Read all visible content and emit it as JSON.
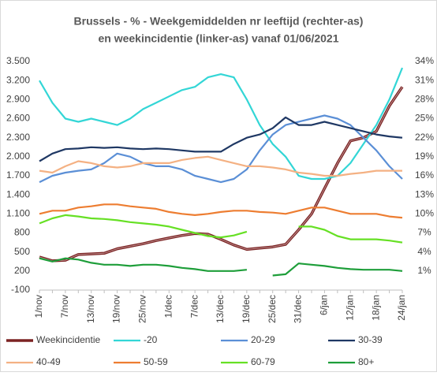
{
  "chart_data": {
    "type": "line",
    "title": "Brussels - % - Weekgemiddelden nr leeftijd (rechter-as)",
    "subtitle": "en weekincidentie  (linker-as) vanaf 01/06/2021",
    "categories": [
      "1/nov",
      null,
      "7/nov",
      null,
      "13/nov",
      null,
      "19/nov",
      null,
      "25/nov",
      null,
      "1/dec",
      null,
      "7/dec",
      null,
      "13/dec",
      null,
      "19/dec",
      null,
      "25/dec",
      null,
      "31/dec",
      null,
      "6/jan",
      null,
      "12/jan",
      null,
      "18/jan",
      null,
      "24/jan"
    ],
    "ylim": [
      -100,
      3500
    ],
    "yticks": [
      {
        "value": 3500,
        "label": "3.500"
      },
      {
        "value": 3200,
        "label": "3.200"
      },
      {
        "value": 2900,
        "label": "2.900"
      },
      {
        "value": 2600,
        "label": "2.600"
      },
      {
        "value": 2300,
        "label": "2.300"
      },
      {
        "value": 2000,
        "label": "2.000"
      },
      {
        "value": 1700,
        "label": "1.700"
      },
      {
        "value": 1400,
        "label": "1.400"
      },
      {
        "value": 1100,
        "label": "1.100"
      },
      800,
      500,
      200,
      -100
    ],
    "y2lim": [
      -2,
      34
    ],
    "y2ticks": [
      {
        "value": 34,
        "label": "34%"
      },
      {
        "value": 31,
        "label": "31%"
      },
      {
        "value": 28,
        "label": "28%"
      },
      {
        "value": 25,
        "label": "25%"
      },
      {
        "value": 22,
        "label": "22%"
      },
      {
        "value": 19,
        "label": "19%"
      },
      {
        "value": 16,
        "label": "16%"
      },
      {
        "value": 13,
        "label": "13%"
      },
      {
        "value": 10,
        "label": "10%"
      },
      {
        "value": 7,
        "label": "7%"
      },
      {
        "value": 4,
        "label": "4%"
      },
      {
        "value": 1,
        "label": "1%"
      }
    ],
    "grid": false,
    "series": [
      {
        "name": "Weekincidentie",
        "color": "#7b2222",
        "values": [
          420,
          360,
          370,
          460,
          470,
          480,
          550,
          590,
          630,
          680,
          720,
          760,
          790,
          780,
          700,
          610,
          540,
          560,
          580,
          620,
          850,
          1100,
          1500,
          1900,
          2250,
          2300,
          2400,
          2800,
          3100
        ]
      },
      {
        "name": "-20",
        "color": "#33d6d6",
        "axis": "y2",
        "values": [
          31,
          27.5,
          25,
          24.5,
          25,
          24.5,
          24,
          25,
          26.5,
          27.5,
          28.5,
          29.5,
          30,
          31.5,
          32,
          31.5,
          28,
          24,
          21,
          19,
          16,
          15.5,
          15.5,
          16,
          18,
          21,
          24,
          28,
          33
        ]
      },
      {
        "name": "20-29",
        "color": "#5b8fd6",
        "axis": "y2",
        "values": [
          15,
          16,
          16.5,
          16.8,
          17,
          18,
          19.5,
          19,
          18,
          17.5,
          17.5,
          17,
          16,
          15.5,
          15,
          15.5,
          17,
          20,
          22.5,
          24,
          24.5,
          25,
          25.5,
          25,
          24,
          22,
          20,
          17.5,
          15.5
        ]
      },
      {
        "name": "30-39",
        "color": "#1f3864",
        "axis": "y2",
        "values": [
          18.3,
          19.5,
          20.2,
          20.3,
          20.5,
          20.4,
          20.5,
          20.3,
          20.2,
          20.3,
          20.2,
          20,
          19.8,
          19.8,
          19.8,
          21,
          22,
          22.5,
          23.5,
          25.2,
          24,
          24,
          24.5,
          24,
          23.5,
          23,
          22.5,
          22.2,
          22
        ]
      },
      {
        "name": "40-49",
        "color": "#f4b183",
        "axis": "y2",
        "values": [
          16.8,
          16.5,
          17.5,
          18.3,
          18,
          17.5,
          17.3,
          17.5,
          18,
          18,
          18,
          18.5,
          18.8,
          19,
          18.5,
          18,
          17.5,
          17.5,
          17.3,
          17,
          16.5,
          16.3,
          16,
          16,
          16.3,
          16.5,
          16.8,
          16.8,
          16.8
        ]
      },
      {
        "name": "50-59",
        "color": "#ed7d31",
        "axis": "y2",
        "values": [
          10,
          10.5,
          10.5,
          11,
          11.2,
          11.5,
          11.5,
          11.2,
          11,
          10.8,
          10.3,
          10,
          9.8,
          10,
          10.3,
          10.5,
          10.5,
          10.3,
          10.2,
          10,
          10.5,
          11,
          11,
          10.5,
          10,
          10,
          10,
          9.6,
          9.4
        ]
      },
      {
        "name": "60-79",
        "color": "#66e024",
        "axis": "y2",
        "values": [
          8.5,
          9.3,
          9.8,
          9.6,
          9.3,
          9.2,
          9,
          8.7,
          8.5,
          8.3,
          8,
          7.5,
          7,
          6.5,
          6.3,
          6.6,
          7.2,
          null,
          null,
          null,
          8,
          8,
          7.5,
          6.5,
          6,
          6,
          6,
          5.8,
          5.5
        ]
      },
      {
        "name": "80+",
        "color": "#1e9e3a",
        "axis": "y2",
        "values": [
          3,
          2.5,
          3,
          2.8,
          2.3,
          2,
          2,
          1.8,
          2,
          2,
          1.8,
          1.5,
          1.3,
          1,
          1,
          1,
          1.2,
          null,
          0.3,
          0.5,
          2.2,
          2,
          1.8,
          1.5,
          1.3,
          1.2,
          1.2,
          1.2,
          1
        ]
      }
    ]
  }
}
